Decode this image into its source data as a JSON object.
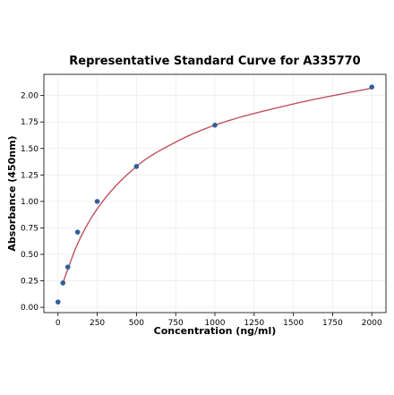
{
  "chart_data": {
    "type": "scatter",
    "title": "Representative Standard Curve for A335770",
    "xlabel": "Concentration (ng/ml)",
    "ylabel": "Absorbance (450nm)",
    "xlim": [
      -90,
      2090
    ],
    "ylim": [
      -0.05,
      2.2
    ],
    "x_ticks": [
      0,
      250,
      500,
      750,
      1000,
      1250,
      1500,
      1750,
      2000
    ],
    "x_tick_labels": [
      "0",
      "250",
      "500",
      "750",
      "1000",
      "1250",
      "1500",
      "1750",
      "2000"
    ],
    "y_ticks": [
      0.0,
      0.25,
      0.5,
      0.75,
      1.0,
      1.25,
      1.5,
      1.75,
      2.0
    ],
    "y_tick_labels": [
      "0.00",
      "0.25",
      "0.50",
      "0.75",
      "1.00",
      "1.25",
      "1.50",
      "1.75",
      "2.00"
    ],
    "grid": true,
    "series": [
      {
        "type": "scatter",
        "color": "#2f5f9a",
        "x": [
          0,
          31.25,
          62.5,
          125,
          250,
          500,
          1000,
          2000
        ],
        "y": [
          0.05,
          0.23,
          0.38,
          0.71,
          1.0,
          1.33,
          1.72,
          2.08
        ]
      },
      {
        "type": "line",
        "color": "#c0505f",
        "fit": "smooth curve through standards",
        "x": [
          31.25,
          62.5,
          125,
          250,
          500,
          750,
          1000,
          1500,
          2000
        ],
        "y": [
          0.23,
          0.36,
          0.6,
          0.93,
          1.33,
          1.56,
          1.72,
          1.92,
          2.07
        ]
      }
    ]
  }
}
